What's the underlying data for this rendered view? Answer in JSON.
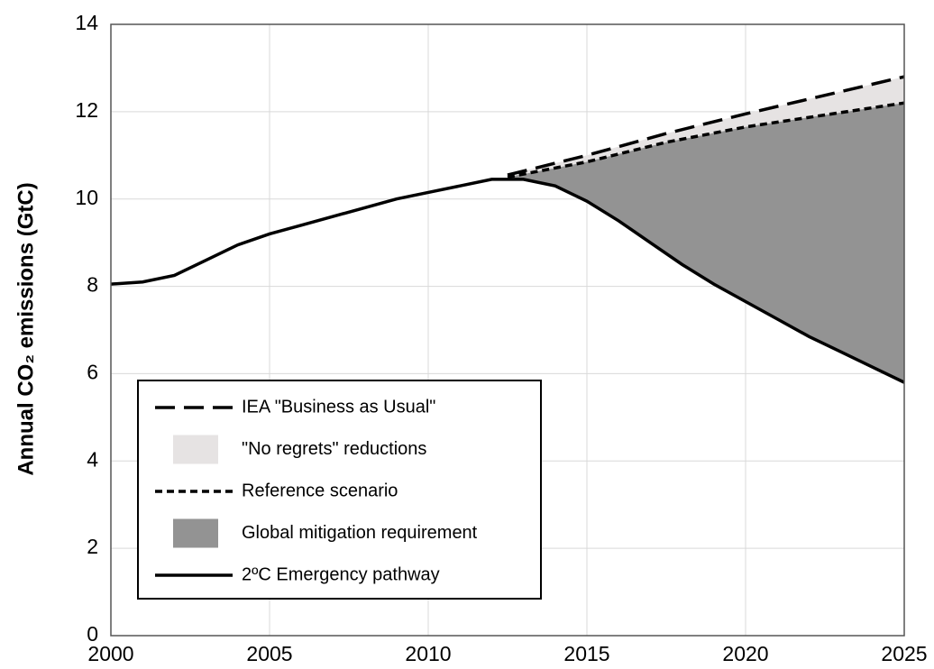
{
  "chart_data": {
    "type": "line",
    "y_label": "Annual CO₂ emissions (GtC)",
    "xlim": [
      2000,
      2025
    ],
    "xticks": [
      2000,
      2005,
      2010,
      2015,
      2020,
      2025
    ],
    "ylim": [
      0,
      14
    ],
    "yticks": [
      0,
      2,
      4,
      6,
      8,
      10,
      12,
      14
    ],
    "grid": true,
    "legend": "lower left",
    "series": [
      {
        "name": "IEA \"Business as Usual\"",
        "color": "#000000",
        "dash": "dashed",
        "x": [
          2012.5,
          2015,
          2017.5,
          2020,
          2025
        ],
        "values": [
          10.55,
          11.0,
          11.5,
          11.95,
          12.8
        ]
      },
      {
        "name": "Reference scenario",
        "color": "#000000",
        "dash": "dotted",
        "x": [
          2012.5,
          2015,
          2017.5,
          2020,
          2025
        ],
        "values": [
          10.5,
          10.85,
          11.3,
          11.65,
          12.2
        ]
      },
      {
        "name": "2ºC Emergency pathway",
        "color": "#000000",
        "dash": "solid",
        "x": [
          2000,
          2001,
          2002,
          2003,
          2004,
          2005,
          2006,
          2007,
          2008,
          2009,
          2010,
          2011,
          2012,
          2013,
          2014,
          2015,
          2016,
          2017,
          2018,
          2019,
          2020,
          2021,
          2022,
          2023,
          2024,
          2025
        ],
        "values": [
          8.05,
          8.1,
          8.25,
          8.6,
          8.95,
          9.2,
          9.4,
          9.6,
          9.8,
          10.0,
          10.15,
          10.3,
          10.45,
          10.45,
          10.3,
          9.95,
          9.5,
          9.0,
          8.5,
          8.05,
          7.65,
          7.25,
          6.85,
          6.5,
          6.15,
          5.8
        ]
      }
    ],
    "areas": [
      {
        "name": "\"No regrets\" reductions",
        "color": "#e6e3e3"
      },
      {
        "name": "Global mitigation requirement",
        "color": "#939393"
      }
    ]
  }
}
